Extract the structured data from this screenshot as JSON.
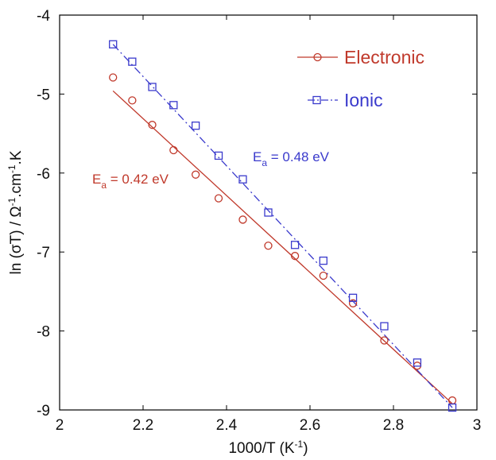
{
  "chart_data": {
    "type": "scatter",
    "xlabel": "1000/T (K",
    "xlabel_sup": "-1",
    "xlabel_tail": ")",
    "ylabel": {
      "prefix": "ln (σT) / Ω",
      "sup1": "-1",
      "mid": ".cm",
      "sup2": "-1",
      "tail": ".K"
    },
    "xlim": [
      2,
      3
    ],
    "ylim": [
      -9,
      -4
    ],
    "xticks": [
      "2",
      "2.2",
      "2.4",
      "2.6",
      "2.8",
      "3"
    ],
    "yticks": [
      "-4",
      "-5",
      "-6",
      "-7",
      "-8",
      "-9"
    ],
    "grid": false,
    "legend_position": "top-right",
    "series": [
      {
        "name": "Electronic",
        "color": "#c0392b",
        "marker": "circle",
        "line": "solid",
        "x": [
          2.128,
          2.174,
          2.222,
          2.273,
          2.326,
          2.381,
          2.439,
          2.5,
          2.564,
          2.632,
          2.703,
          2.778,
          2.857,
          2.941
        ],
        "y": [
          -4.79,
          -5.08,
          -5.39,
          -5.71,
          -6.02,
          -6.32,
          -6.59,
          -6.92,
          -7.05,
          -7.3,
          -7.65,
          -8.12,
          -8.44,
          -8.88
        ],
        "fit": {
          "x": [
            2.128,
            2.941
          ],
          "y": [
            -4.96,
            -8.92
          ]
        }
      },
      {
        "name": "Ionic",
        "color": "#3a3acc",
        "marker": "square",
        "line": "dashdot",
        "x": [
          2.128,
          2.174,
          2.222,
          2.273,
          2.326,
          2.381,
          2.439,
          2.5,
          2.564,
          2.632,
          2.703,
          2.778,
          2.857,
          2.941
        ],
        "y": [
          -4.37,
          -4.59,
          -4.91,
          -5.14,
          -5.4,
          -5.78,
          -6.08,
          -6.5,
          -6.91,
          -7.11,
          -7.58,
          -7.94,
          -8.4,
          -8.97
        ],
        "fit": {
          "x": [
            2.128,
            2.941
          ],
          "y": [
            -4.37,
            -8.97
          ]
        }
      }
    ],
    "annotations": [
      {
        "id": "electronic",
        "text_main": "E",
        "text_sub": "a",
        "text_rest": " = 0.42 eV",
        "color": "#c0392b"
      },
      {
        "id": "ionic",
        "text_main": "E",
        "text_sub": "a",
        "text_rest": " = 0.48 eV",
        "color": "#3a3acc"
      }
    ]
  }
}
